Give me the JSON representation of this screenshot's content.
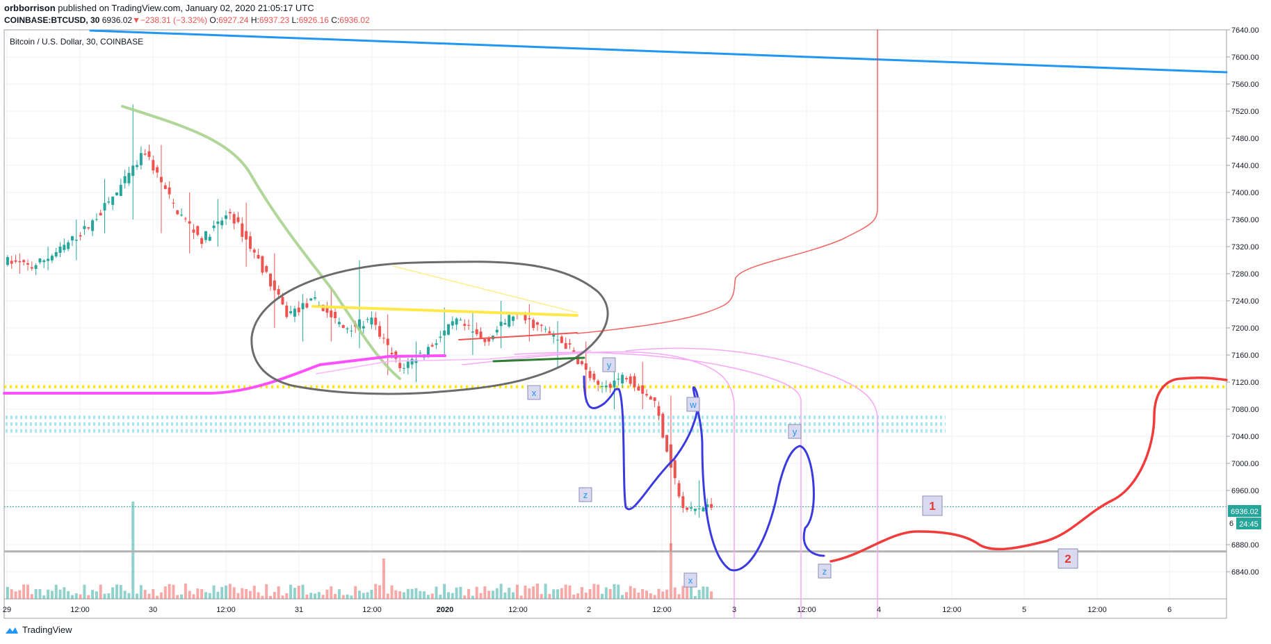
{
  "header": {
    "author": "orbborrison",
    "published": "published on TradingView.com, January 02, 2020 21:05:17 UTC",
    "symbol": "COINBASE:BTCUSD, 30",
    "last": "6936.02",
    "arrow": "▼",
    "change": "−238.31 (−3.32%)",
    "o_label": "O:",
    "o": "6927.24",
    "h_label": "H:",
    "h": "6937.23",
    "l_label": "L:",
    "l": "6926.16",
    "c_label": "C:",
    "c": "6936.02"
  },
  "footer": {
    "brand": "TradingView",
    "icon": "tradingview-logo-icon"
  },
  "colors": {
    "up": "#26a69a",
    "down": "#ef5350",
    "trendline_blue": "#2196f3",
    "ellipse": "#6b6b6b",
    "wave": "#3a3ae0",
    "magenta": "#ff4fff",
    "yellow": "#ffeb3b",
    "projection": "#f23b3b",
    "support": "#b2b2b2"
  },
  "chart_data": {
    "type": "candlestick",
    "title": "Bitcoin / U.S. Dollar, 30, COINBASE",
    "y_axis": {
      "ticks": [
        7640,
        7600,
        7560,
        7520,
        7480,
        7440,
        7400,
        7360,
        7320,
        7280,
        7240,
        7200,
        7160,
        7120,
        7080,
        7040,
        7000,
        6960,
        6880,
        6840
      ],
      "tick_labels": [
        "7640.00",
        "7600.00",
        "7560.00",
        "7520.00",
        "7480.00",
        "7440.00",
        "7400.00",
        "7360.00",
        "7320.00",
        "7280.00",
        "7240.00",
        "7200.00",
        "7160.00",
        "7120.00",
        "7080.00",
        "7040.00",
        "7000.00",
        "6960.00",
        "6880.00",
        "6840.00"
      ],
      "range": [
        6810,
        7650
      ]
    },
    "x_axis": {
      "tick_labels": [
        "29",
        "12:00",
        "30",
        "12:00",
        "31",
        "12:00",
        "2020",
        "12:00",
        "2",
        "12:00",
        "3",
        "12:00",
        "4",
        "12:00",
        "5",
        "12:00",
        "6"
      ]
    },
    "price_label": "6936.02",
    "countdown_label": "24:45",
    "axis_partial_label": "6",
    "wave_labels": [
      "x",
      "y",
      "z",
      "w",
      "x",
      "y",
      "z"
    ],
    "projection_labels": [
      "1",
      "2"
    ],
    "candles_key": [
      [
        7300,
        7310,
        7280,
        7290
      ],
      [
        7290,
        7320,
        7285,
        7315
      ],
      [
        7315,
        7360,
        7300,
        7350
      ],
      [
        7350,
        7420,
        7340,
        7400
      ],
      [
        7400,
        7530,
        7360,
        7460
      ],
      [
        7460,
        7470,
        7340,
        7380
      ],
      [
        7380,
        7400,
        7310,
        7330
      ],
      [
        7330,
        7390,
        7320,
        7370
      ],
      [
        7370,
        7385,
        7290,
        7300
      ],
      [
        7300,
        7310,
        7200,
        7220
      ],
      [
        7220,
        7250,
        7180,
        7240
      ],
      [
        7240,
        7260,
        7180,
        7200
      ],
      [
        7200,
        7300,
        7170,
        7210
      ],
      [
        7210,
        7220,
        7130,
        7140
      ],
      [
        7140,
        7180,
        7120,
        7170
      ],
      [
        7170,
        7230,
        7160,
        7210
      ],
      [
        7210,
        7225,
        7160,
        7180
      ],
      [
        7180,
        7240,
        7170,
        7220
      ],
      [
        7220,
        7235,
        7180,
        7200
      ],
      [
        7200,
        7210,
        7140,
        7170
      ],
      [
        7170,
        7180,
        7090,
        7110
      ],
      [
        7110,
        7150,
        7080,
        7130
      ],
      [
        7130,
        7150,
        7080,
        7090
      ],
      [
        7090,
        7100,
        6870,
        6930
      ],
      [
        6930,
        6975,
        6920,
        6936
      ]
    ]
  }
}
